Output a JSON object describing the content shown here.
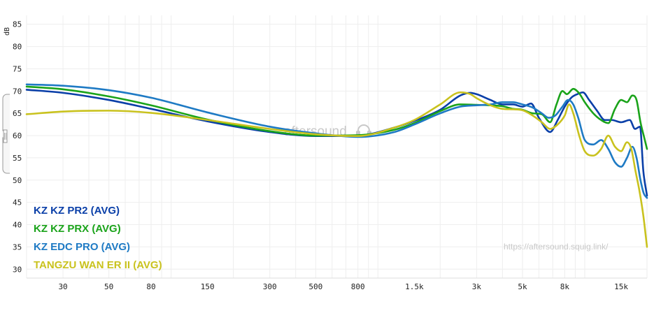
{
  "chart_data": {
    "type": "line",
    "ylabel": "dB",
    "ylim": [
      28,
      87
    ],
    "xlim": [
      20,
      20000
    ],
    "x_scale": "log",
    "grid": true,
    "legend_position": "bottom-left",
    "y_ticks": [
      30,
      35,
      40,
      45,
      50,
      55,
      60,
      65,
      70,
      75,
      80,
      85
    ],
    "x_ticks": [
      {
        "value": 30,
        "label": "30"
      },
      {
        "value": 50,
        "label": "50"
      },
      {
        "value": 80,
        "label": "80"
      },
      {
        "value": 150,
        "label": "150"
      },
      {
        "value": 300,
        "label": "300"
      },
      {
        "value": 500,
        "label": "500"
      },
      {
        "value": 800,
        "label": "800"
      },
      {
        "value": 1500,
        "label": "1.5k"
      },
      {
        "value": 3000,
        "label": "3k"
      },
      {
        "value": 5000,
        "label": "5k"
      },
      {
        "value": 8000,
        "label": "8k"
      },
      {
        "value": 15000,
        "label": "15k"
      }
    ],
    "watermark": "aftersound",
    "url": "https://aftersound.squig.link/",
    "series": [
      {
        "name": "KZ KZ PR2 (AVG)",
        "color": "#0a3fa8",
        "points": [
          [
            20,
            70.3
          ],
          [
            30,
            69.6
          ],
          [
            50,
            68.0
          ],
          [
            80,
            66.0
          ],
          [
            150,
            63.2
          ],
          [
            300,
            60.8
          ],
          [
            500,
            59.9
          ],
          [
            800,
            60.0
          ],
          [
            1200,
            61.8
          ],
          [
            1500,
            63.3
          ],
          [
            2000,
            65.8
          ],
          [
            2500,
            69.0
          ],
          [
            2800,
            69.6
          ],
          [
            3000,
            69.3
          ],
          [
            3500,
            68.0
          ],
          [
            4000,
            67.0
          ],
          [
            4500,
            67.0
          ],
          [
            5000,
            66.5
          ],
          [
            5500,
            67.2
          ],
          [
            6000,
            64.0
          ],
          [
            6800,
            60.8
          ],
          [
            7400,
            63.5
          ],
          [
            8000,
            66.5
          ],
          [
            8600,
            68.5
          ],
          [
            9200,
            69.3
          ],
          [
            9800,
            69.7
          ],
          [
            10500,
            68.0
          ],
          [
            11500,
            65.5
          ],
          [
            12500,
            63.5
          ],
          [
            13500,
            63.5
          ],
          [
            15000,
            63.0
          ],
          [
            16500,
            63.5
          ],
          [
            17500,
            61.5
          ],
          [
            18500,
            62.0
          ],
          [
            19200,
            52.0
          ],
          [
            20000,
            46.5
          ]
        ]
      },
      {
        "name": "KZ KZ PRX (AVG)",
        "color": "#1aa31a",
        "points": [
          [
            20,
            71.0
          ],
          [
            30,
            70.4
          ],
          [
            50,
            68.8
          ],
          [
            80,
            66.8
          ],
          [
            150,
            63.6
          ],
          [
            300,
            61.0
          ],
          [
            500,
            60.0
          ],
          [
            800,
            60.1
          ],
          [
            1200,
            61.3
          ],
          [
            1500,
            62.8
          ],
          [
            2000,
            65.5
          ],
          [
            2500,
            67.0
          ],
          [
            3000,
            66.9
          ],
          [
            3500,
            66.8
          ],
          [
            4000,
            66.6
          ],
          [
            4500,
            66.0
          ],
          [
            5000,
            65.8
          ],
          [
            5600,
            65.0
          ],
          [
            6200,
            64.8
          ],
          [
            6800,
            63.0
          ],
          [
            7300,
            67.0
          ],
          [
            7800,
            70.0
          ],
          [
            8200,
            69.3
          ],
          [
            8800,
            70.5
          ],
          [
            9400,
            69.5
          ],
          [
            10000,
            67.5
          ],
          [
            11000,
            65.0
          ],
          [
            12000,
            63.5
          ],
          [
            13000,
            62.8
          ],
          [
            14000,
            66.0
          ],
          [
            15000,
            68.0
          ],
          [
            16000,
            67.5
          ],
          [
            17000,
            69.0
          ],
          [
            17800,
            68.0
          ],
          [
            18600,
            63.0
          ],
          [
            19400,
            59.5
          ],
          [
            20000,
            57.0
          ]
        ]
      },
      {
        "name": "KZ EDC PRO (AVG)",
        "color": "#1e7ac4",
        "points": [
          [
            20,
            71.5
          ],
          [
            30,
            71.2
          ],
          [
            50,
            70.2
          ],
          [
            80,
            68.5
          ],
          [
            150,
            65.2
          ],
          [
            300,
            62.0
          ],
          [
            500,
            60.5
          ],
          [
            800,
            59.7
          ],
          [
            1200,
            60.8
          ],
          [
            1500,
            62.5
          ],
          [
            2000,
            65.0
          ],
          [
            2500,
            66.5
          ],
          [
            3000,
            66.8
          ],
          [
            3500,
            67.0
          ],
          [
            4000,
            67.5
          ],
          [
            4500,
            67.5
          ],
          [
            5000,
            67.0
          ],
          [
            5600,
            66.3
          ],
          [
            6200,
            65.0
          ],
          [
            6700,
            64.0
          ],
          [
            7200,
            64.5
          ],
          [
            7800,
            66.5
          ],
          [
            8300,
            68.0
          ],
          [
            8800,
            67.0
          ],
          [
            9300,
            64.0
          ],
          [
            10000,
            59.0
          ],
          [
            11000,
            58.0
          ],
          [
            12000,
            59.0
          ],
          [
            13000,
            57.0
          ],
          [
            14000,
            54.0
          ],
          [
            15000,
            53.0
          ],
          [
            16000,
            55.0
          ],
          [
            17000,
            57.5
          ],
          [
            17800,
            55.0
          ],
          [
            18600,
            50.0
          ],
          [
            19300,
            47.0
          ],
          [
            20000,
            46.0
          ]
        ]
      },
      {
        "name": "TANGZU WAN ER II (AVG)",
        "color": "#c9c21e",
        "points": [
          [
            20,
            64.8
          ],
          [
            30,
            65.4
          ],
          [
            50,
            65.6
          ],
          [
            80,
            65.1
          ],
          [
            150,
            63.5
          ],
          [
            300,
            61.5
          ],
          [
            500,
            60.3
          ],
          [
            800,
            59.9
          ],
          [
            1200,
            61.8
          ],
          [
            1500,
            63.5
          ],
          [
            2000,
            67.0
          ],
          [
            2500,
            69.7
          ],
          [
            2800,
            69.3
          ],
          [
            3000,
            68.4
          ],
          [
            3500,
            66.8
          ],
          [
            4000,
            66.0
          ],
          [
            4500,
            65.9
          ],
          [
            5000,
            65.7
          ],
          [
            5600,
            64.5
          ],
          [
            6200,
            63.0
          ],
          [
            6800,
            61.5
          ],
          [
            7400,
            62.5
          ],
          [
            8000,
            64.5
          ],
          [
            8400,
            67.0
          ],
          [
            8800,
            65.0
          ],
          [
            9400,
            60.0
          ],
          [
            10000,
            56.5
          ],
          [
            11000,
            55.5
          ],
          [
            12000,
            57.0
          ],
          [
            13000,
            60.0
          ],
          [
            14000,
            57.5
          ],
          [
            15000,
            56.5
          ],
          [
            16000,
            58.5
          ],
          [
            16800,
            57.0
          ],
          [
            17600,
            52.0
          ],
          [
            18400,
            47.5
          ],
          [
            19200,
            42.0
          ],
          [
            20000,
            35.0
          ]
        ]
      }
    ]
  }
}
